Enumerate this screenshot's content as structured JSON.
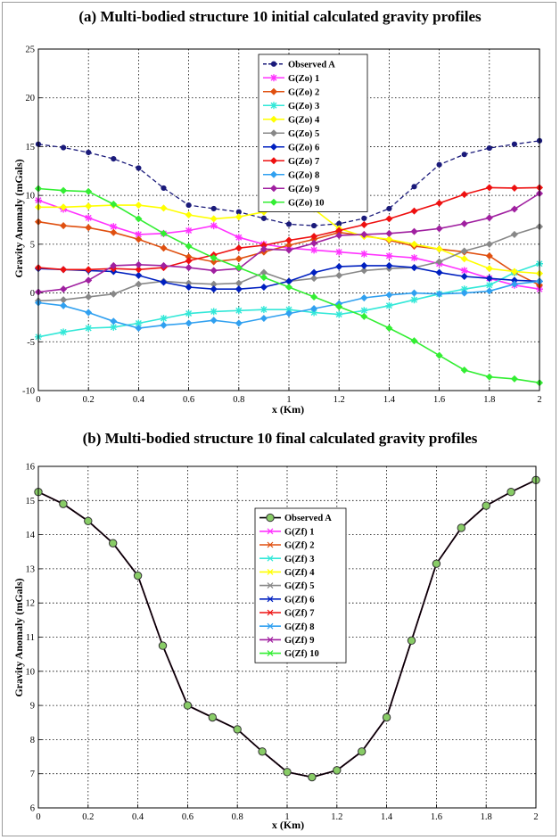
{
  "chart_data": [
    {
      "type": "line",
      "title": "(a) Multi-bodied structure 10 initial calculated gravity profiles",
      "xlabel": "x (Km)",
      "ylabel": "Gravity Anomaly (mGals)",
      "xlim": [
        0,
        2
      ],
      "ylim": [
        -10,
        25
      ],
      "xticks": [
        "0",
        "0.2",
        "0.4",
        "0.6",
        "0.8",
        "1",
        "1.2",
        "1.4",
        "1.6",
        "1.8",
        "2"
      ],
      "yticks": [
        "-10",
        "-5",
        "0",
        "5",
        "10",
        "15",
        "20",
        "25"
      ],
      "grid": true,
      "legend_position": "top-center",
      "x": [
        0,
        0.1,
        0.2,
        0.3,
        0.4,
        0.5,
        0.6,
        0.7,
        0.8,
        0.9,
        1.0,
        1.1,
        1.2,
        1.3,
        1.4,
        1.5,
        1.6,
        1.7,
        1.8,
        1.9,
        2.0
      ],
      "series": [
        {
          "name": "Observed A",
          "color": "#1a1a7a",
          "marker": "dot",
          "dash": true,
          "values": [
            15.25,
            14.9,
            14.4,
            13.75,
            12.8,
            10.75,
            9.0,
            8.65,
            8.3,
            7.65,
            7.05,
            6.9,
            7.1,
            7.65,
            8.65,
            10.9,
            13.15,
            14.2,
            14.85,
            15.25,
            15.6
          ]
        },
        {
          "name": "G(Zo) 1",
          "color": "#ff33ff",
          "marker": "star",
          "values": [
            9.5,
            8.6,
            7.7,
            6.8,
            6.0,
            6.1,
            6.4,
            6.9,
            5.7,
            5.0,
            4.6,
            4.4,
            4.2,
            4.0,
            3.8,
            3.6,
            3.0,
            2.3,
            1.5,
            0.8,
            0.4
          ]
        },
        {
          "name": "G(Zo) 2",
          "color": "#e05010",
          "marker": "diamond",
          "values": [
            7.3,
            6.9,
            6.7,
            6.2,
            5.5,
            4.6,
            3.7,
            3.2,
            3.5,
            4.2,
            4.9,
            5.5,
            6.2,
            5.9,
            5.4,
            4.8,
            4.5,
            4.2,
            3.8,
            2.1,
            0.8
          ]
        },
        {
          "name": "G(Zo) 3",
          "color": "#33e8d8",
          "marker": "star",
          "values": [
            -4.5,
            -4.0,
            -3.6,
            -3.5,
            -3.1,
            -2.6,
            -2.1,
            -1.9,
            -1.8,
            -1.7,
            -1.7,
            -2.0,
            -2.2,
            -1.8,
            -1.3,
            -0.7,
            -0.1,
            0.4,
            0.8,
            2.1,
            3.0
          ]
        },
        {
          "name": "G(Zo) 4",
          "color": "#ffff00",
          "marker": "diamond",
          "values": [
            8.8,
            8.8,
            8.9,
            9.0,
            9.0,
            8.7,
            8.0,
            7.6,
            7.8,
            8.3,
            8.7,
            8.6,
            6.6,
            5.8,
            5.5,
            5.0,
            4.5,
            3.5,
            2.5,
            2.2,
            2.0
          ]
        },
        {
          "name": "G(Zo) 5",
          "color": "#888888",
          "marker": "diamond",
          "values": [
            -0.8,
            -0.7,
            -0.4,
            -0.1,
            0.9,
            1.2,
            1.0,
            0.9,
            1.0,
            2.1,
            1.2,
            1.5,
            1.8,
            2.3,
            2.5,
            2.6,
            3.2,
            4.3,
            5.0,
            6.0,
            6.8
          ]
        },
        {
          "name": "G(Zo) 6",
          "color": "#0020c0",
          "marker": "diamond",
          "values": [
            2.5,
            2.4,
            2.3,
            2.2,
            1.8,
            1.1,
            0.6,
            0.4,
            0.4,
            0.6,
            1.2,
            2.1,
            2.7,
            2.8,
            2.8,
            2.6,
            2.1,
            1.7,
            1.5,
            1.3,
            1.2
          ]
        },
        {
          "name": "G(Zo) 7",
          "color": "#ee1010",
          "marker": "diamond",
          "values": [
            2.6,
            2.4,
            2.4,
            2.5,
            2.4,
            2.6,
            3.3,
            3.9,
            4.6,
            4.9,
            5.4,
            5.8,
            6.4,
            7.0,
            7.6,
            8.4,
            9.2,
            10.1,
            10.8,
            10.75,
            10.8
          ]
        },
        {
          "name": "G(Zo) 8",
          "color": "#30a0f0",
          "marker": "diamond",
          "values": [
            -1.0,
            -1.3,
            -2.0,
            -2.9,
            -3.6,
            -3.3,
            -3.1,
            -2.8,
            -3.1,
            -2.6,
            -2.1,
            -1.6,
            -1.1,
            -0.5,
            -0.2,
            0.0,
            -0.1,
            0.0,
            0.2,
            0.9,
            1.2
          ]
        },
        {
          "name": "G(Zo) 9",
          "color": "#a020a0",
          "marker": "diamond",
          "values": [
            0.1,
            0.4,
            1.3,
            2.8,
            2.9,
            2.8,
            2.6,
            2.3,
            2.5,
            4.5,
            4.4,
            5.1,
            5.9,
            6.0,
            6.1,
            6.3,
            6.6,
            7.1,
            7.7,
            8.6,
            10.2
          ]
        },
        {
          "name": "G(Zo) 10",
          "color": "#33ee33",
          "marker": "diamond",
          "values": [
            10.7,
            10.5,
            10.4,
            9.1,
            7.6,
            6.1,
            4.8,
            3.6,
            2.6,
            1.6,
            0.6,
            -0.4,
            -1.4,
            -2.4,
            -3.6,
            -4.9,
            -6.4,
            -7.9,
            -8.6,
            -8.8,
            -9.2
          ]
        }
      ]
    },
    {
      "type": "line",
      "title": "(b) Multi-bodied structure 10 final calculated gravity profiles",
      "xlabel": "x (Km)",
      "ylabel": "Gravity Anomaly (mGals)",
      "xlim": [
        0,
        2
      ],
      "ylim": [
        6,
        16
      ],
      "xticks": [
        "0",
        "0.2",
        "0.4",
        "0.6",
        "0.8",
        "1",
        "1.2",
        "1.4",
        "1.6",
        "1.8",
        "2"
      ],
      "yticks": [
        "6",
        "7",
        "8",
        "9",
        "10",
        "11",
        "12",
        "13",
        "14",
        "15",
        "16"
      ],
      "grid": true,
      "legend_position": "top-center",
      "x": [
        0,
        0.1,
        0.2,
        0.3,
        0.4,
        0.5,
        0.6,
        0.7,
        0.8,
        0.9,
        1.0,
        1.1,
        1.2,
        1.3,
        1.4,
        1.5,
        1.6,
        1.7,
        1.8,
        1.9,
        2.0
      ],
      "series": [
        {
          "name": "Observed A",
          "color": "#000000",
          "marker": "circle",
          "values": [
            15.25,
            14.9,
            14.4,
            13.75,
            12.8,
            10.75,
            9.0,
            8.65,
            8.3,
            7.65,
            7.05,
            6.9,
            7.1,
            7.65,
            8.65,
            10.9,
            13.15,
            14.2,
            14.85,
            15.25,
            15.6
          ]
        },
        {
          "name": "G(Zf) 1",
          "color": "#ff33ff",
          "marker": "x",
          "values": [
            15.25,
            14.9,
            14.4,
            13.75,
            12.8,
            10.75,
            9.0,
            8.65,
            8.3,
            7.65,
            7.05,
            6.9,
            7.1,
            7.65,
            8.65,
            10.9,
            13.15,
            14.2,
            14.85,
            15.25,
            15.6
          ]
        },
        {
          "name": "G(Zf) 2",
          "color": "#e05010",
          "marker": "x",
          "values": [
            15.25,
            14.9,
            14.4,
            13.75,
            12.8,
            10.75,
            9.0,
            8.65,
            8.3,
            7.65,
            7.05,
            6.9,
            7.1,
            7.65,
            8.65,
            10.9,
            13.15,
            14.2,
            14.85,
            15.25,
            15.6
          ]
        },
        {
          "name": "G(Zf) 3",
          "color": "#33e8d8",
          "marker": "x",
          "values": [
            15.25,
            14.9,
            14.4,
            13.75,
            12.8,
            10.75,
            9.0,
            8.65,
            8.3,
            7.65,
            7.05,
            6.9,
            7.1,
            7.65,
            8.65,
            10.9,
            13.15,
            14.2,
            14.85,
            15.25,
            15.6
          ]
        },
        {
          "name": "G(Zf) 4",
          "color": "#ffff00",
          "marker": "x",
          "values": [
            15.25,
            14.9,
            14.4,
            13.75,
            12.8,
            10.75,
            9.0,
            8.65,
            8.3,
            7.65,
            7.05,
            6.9,
            7.1,
            7.65,
            8.65,
            10.9,
            13.15,
            14.2,
            14.85,
            15.25,
            15.6
          ]
        },
        {
          "name": "G(Zf) 5",
          "color": "#888888",
          "marker": "x",
          "values": [
            15.25,
            14.9,
            14.4,
            13.75,
            12.8,
            10.75,
            9.0,
            8.65,
            8.3,
            7.65,
            7.05,
            6.9,
            7.1,
            7.65,
            8.65,
            10.9,
            13.15,
            14.2,
            14.85,
            15.25,
            15.6
          ]
        },
        {
          "name": "G(Zf) 6",
          "color": "#0020c0",
          "marker": "x",
          "values": [
            15.25,
            14.9,
            14.4,
            13.75,
            12.8,
            10.75,
            9.0,
            8.65,
            8.3,
            7.65,
            7.05,
            6.9,
            7.1,
            7.65,
            8.65,
            10.9,
            13.15,
            14.2,
            14.85,
            15.25,
            15.6
          ]
        },
        {
          "name": "G(Zf) 7",
          "color": "#ee1010",
          "marker": "x",
          "values": [
            15.25,
            14.9,
            14.4,
            13.75,
            12.8,
            10.75,
            9.0,
            8.65,
            8.3,
            7.65,
            7.05,
            6.9,
            7.1,
            7.65,
            8.65,
            10.9,
            13.15,
            14.2,
            14.85,
            15.25,
            15.6
          ]
        },
        {
          "name": "G(Zf) 8",
          "color": "#30a0f0",
          "marker": "x",
          "values": [
            15.25,
            14.9,
            14.4,
            13.75,
            12.8,
            10.75,
            9.0,
            8.65,
            8.3,
            7.65,
            7.05,
            6.9,
            7.1,
            7.65,
            8.65,
            10.9,
            13.15,
            14.2,
            14.85,
            15.25,
            15.6
          ]
        },
        {
          "name": "G(Zf) 9",
          "color": "#a020a0",
          "marker": "x",
          "values": [
            15.25,
            14.9,
            14.4,
            13.75,
            12.8,
            10.75,
            9.0,
            8.65,
            8.3,
            7.65,
            7.05,
            6.9,
            7.1,
            7.65,
            8.65,
            10.9,
            13.15,
            14.2,
            14.85,
            15.25,
            15.6
          ]
        },
        {
          "name": "G(Zf) 10",
          "color": "#33ee33",
          "marker": "x",
          "values": [
            15.25,
            14.9,
            14.4,
            13.75,
            12.8,
            10.75,
            9.0,
            8.65,
            8.3,
            7.65,
            7.05,
            6.9,
            7.1,
            7.65,
            8.65,
            10.9,
            13.15,
            14.2,
            14.85,
            15.25,
            15.6
          ]
        }
      ]
    }
  ]
}
